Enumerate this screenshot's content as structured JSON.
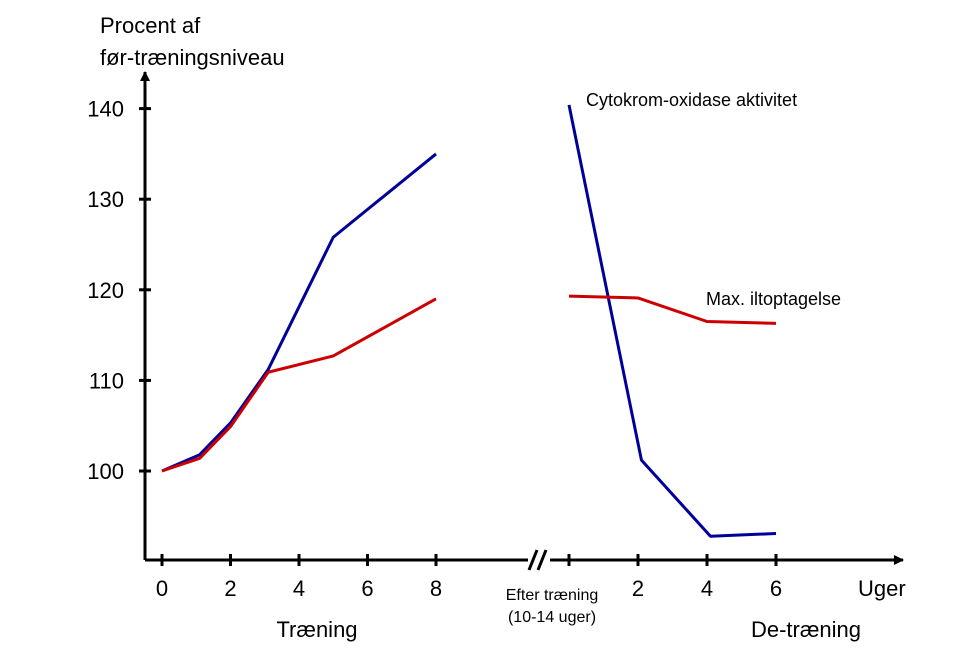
{
  "chart_data": {
    "type": "line",
    "ylabel_line1": "Procent af",
    "ylabel_line2": "før-træningsniveau",
    "xlabel": "Uger",
    "y_ticks": [
      "100",
      "110",
      "120",
      "130",
      "140"
    ],
    "ylim": [
      90,
      142
    ],
    "training": {
      "label": "Træning",
      "tick_labels": [
        "0",
        "2",
        "4",
        "6",
        "8"
      ],
      "tick_values": [
        0,
        2,
        4,
        6,
        8
      ]
    },
    "after_training": {
      "label_line1": "Efter træning",
      "label_line2": "(10-14 uger)"
    },
    "detraining": {
      "label": "De-træning",
      "tick_labels": [
        "2",
        "4",
        "6"
      ],
      "tick_values": [
        2,
        4,
        6
      ]
    },
    "break_mark": "//",
    "series": [
      {
        "name": "Cytokrom-oxidase aktivitet",
        "color": "#000099",
        "training": [
          [
            0,
            100
          ],
          [
            1.1,
            101.8
          ],
          [
            2,
            105.3
          ],
          [
            3.1,
            111.2
          ],
          [
            5,
            125.8
          ],
          [
            8,
            135
          ]
        ],
        "detraining": [
          [
            0,
            140.4
          ],
          [
            2.1,
            101.2
          ],
          [
            4.1,
            92.8
          ],
          [
            6,
            93.1
          ]
        ]
      },
      {
        "name": "Max. iltoptagelse",
        "color": "#cc0000",
        "training": [
          [
            0,
            100
          ],
          [
            1.1,
            101.4
          ],
          [
            2,
            104.9
          ],
          [
            3.1,
            110.9
          ],
          [
            5,
            112.7
          ],
          [
            8,
            119
          ]
        ],
        "detraining": [
          [
            0,
            119.3
          ],
          [
            2,
            119.1
          ],
          [
            4,
            116.5
          ],
          [
            6,
            116.3
          ]
        ]
      }
    ]
  }
}
